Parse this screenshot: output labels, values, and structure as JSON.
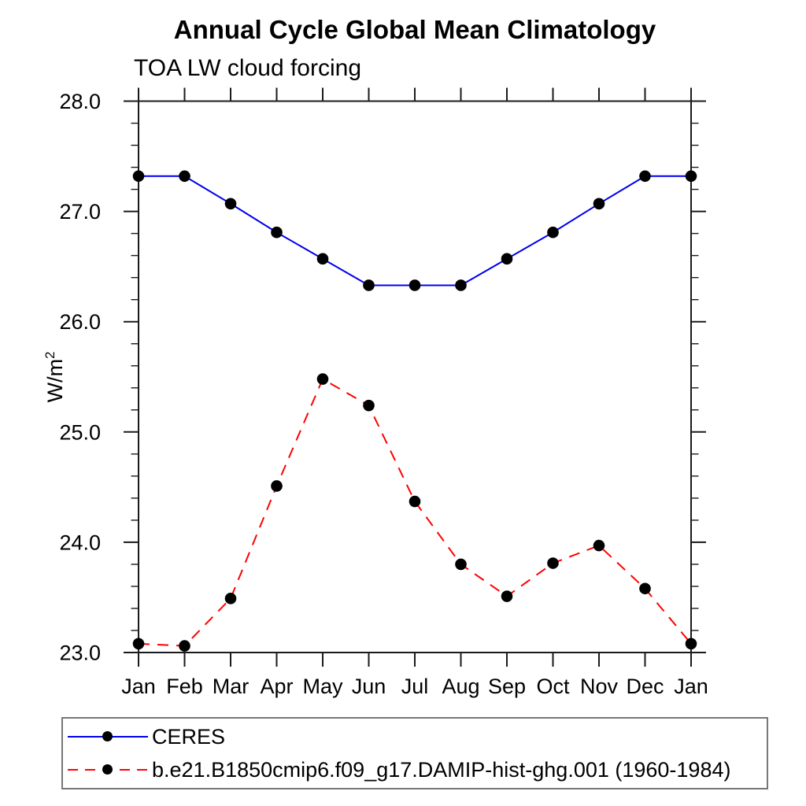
{
  "page": {
    "background": "#ffffff"
  },
  "chart_data": {
    "type": "line",
    "title": "Annual Cycle Global Mean Climatology",
    "subtitle": "TOA LW cloud forcing",
    "ylabel_base": "W/m",
    "ylabel_exponent": "2",
    "categories": [
      "Jan",
      "Feb",
      "Mar",
      "Apr",
      "May",
      "Jun",
      "Jul",
      "Aug",
      "Sep",
      "Oct",
      "Nov",
      "Dec",
      "Jan"
    ],
    "ylim": [
      23.0,
      28.0
    ],
    "ytick_step": 1.0,
    "minor_tick_step": 0.2,
    "ytick_labels": [
      "23.0",
      "24.0",
      "25.0",
      "26.0",
      "27.0",
      "28.0"
    ],
    "grid": false,
    "legend_position": "bottom",
    "axis_color": "#1a1a1a",
    "marker_color": "#000000",
    "series": [
      {
        "name": "CERES",
        "color": "#0000ee",
        "line_style": "solid",
        "values": [
          27.32,
          27.32,
          27.07,
          26.81,
          26.57,
          26.33,
          26.33,
          26.33,
          26.57,
          26.81,
          27.07,
          27.32,
          27.32
        ]
      },
      {
        "name": "b.e21.B1850cmip6.f09_g17.DAMIP-hist-ghg.001 (1960-1984)",
        "color": "#ff0000",
        "line_style": "dashed",
        "values": [
          23.08,
          23.06,
          23.49,
          24.51,
          25.48,
          25.24,
          24.37,
          23.8,
          23.51,
          23.81,
          23.97,
          23.58,
          23.08
        ]
      }
    ]
  }
}
